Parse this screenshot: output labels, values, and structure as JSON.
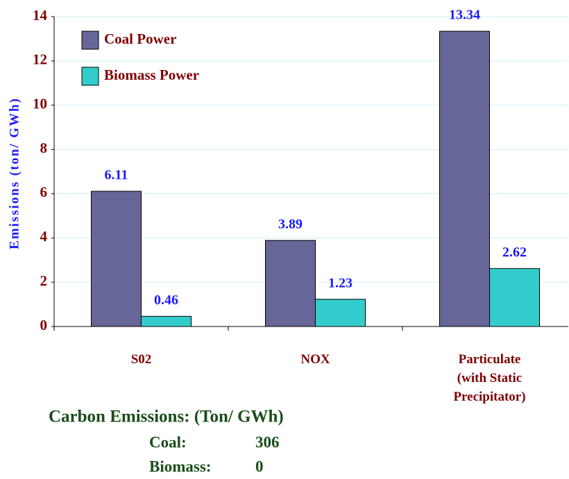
{
  "chart_data": {
    "type": "bar",
    "ylabel": "Emissions (ton/ GWh)",
    "categories": [
      "S02",
      "NOX",
      "Particulate\n(with Static\nPrecipitator)"
    ],
    "series": [
      {
        "name": "Coal Power",
        "color": "#666699",
        "values": [
          6.11,
          3.89,
          13.34
        ]
      },
      {
        "name": "Biomass Power",
        "color": "#33cccc",
        "values": [
          0.46,
          1.23,
          2.62
        ]
      }
    ],
    "ylim": [
      0,
      14
    ],
    "yticks": [
      0,
      2,
      4,
      6,
      8,
      10,
      12,
      14
    ],
    "grid": true,
    "legend": "upper left"
  },
  "carbon": {
    "title": "Carbon Emissions: (Ton/ GWh)",
    "rows": [
      [
        "Coal:",
        "306"
      ],
      [
        "Biomass:",
        "0"
      ]
    ]
  }
}
